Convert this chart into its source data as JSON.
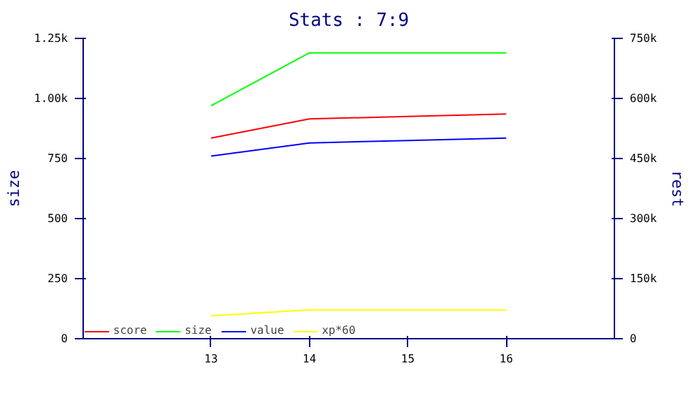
{
  "chart_data": {
    "type": "line",
    "title": "Stats : 7:9",
    "ylabel": "size",
    "y2label": "rest",
    "x": [
      13,
      14,
      15,
      16
    ],
    "xlim": [
      11.7,
      17.1
    ],
    "xticks": [
      13,
      14,
      15,
      16
    ],
    "ylim": [
      0,
      1250
    ],
    "yticks": [
      0,
      250,
      500,
      750,
      {
        "value": 1000,
        "label": "1.00k"
      },
      {
        "value": 1250,
        "label": "1.25k"
      }
    ],
    "y2lim": [
      0,
      750000
    ],
    "y2ticks": [
      {
        "value": 0,
        "label": "0"
      },
      {
        "value": 150000,
        "label": "150k"
      },
      {
        "value": 300000,
        "label": "300k"
      },
      {
        "value": 450000,
        "label": "450k"
      },
      {
        "value": 600000,
        "label": "600k"
      },
      {
        "value": 750000,
        "label": "750k"
      }
    ],
    "series": [
      {
        "name": "score",
        "color": "#ff0000",
        "axis": "y2",
        "values": [
          501000,
          549000,
          555000,
          561000
        ]
      },
      {
        "name": "size",
        "color": "#00ff00",
        "values": [
          970,
          1190,
          1190,
          1190
        ]
      },
      {
        "name": "value",
        "color": "#0000ff",
        "axis": "y2",
        "values": [
          456000,
          489000,
          495000,
          501000
        ]
      },
      {
        "name": "xp*60",
        "color": "#ffff00",
        "axis": "y2",
        "values": [
          57000,
          72000,
          72000,
          72000
        ]
      }
    ],
    "grid": false,
    "legend": "bottom left"
  }
}
